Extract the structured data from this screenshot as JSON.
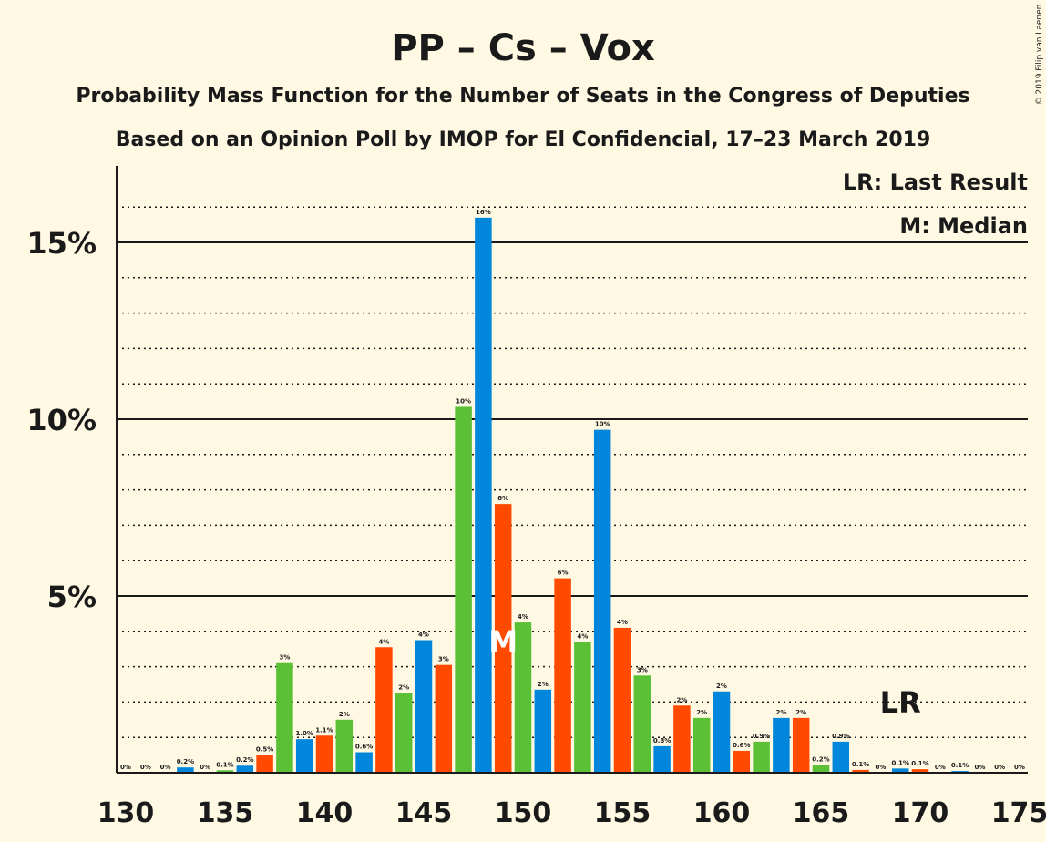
{
  "chart_data": {
    "type": "bar",
    "title": "PP – Cs – Vox",
    "subtitle_1": "Probability Mass Function for the Number of Seats in the Congress of Deputies",
    "subtitle_2": "Based on an Opinion Poll by IMOP for El Confidencial, 17–23 March 2019",
    "copyright": "© 2019 Filip van Laenen",
    "legend": {
      "last_result": "LR: Last Result",
      "median": "M: Median",
      "placement": "top-right"
    },
    "xlabel": "",
    "ylabel": "",
    "xlim": [
      130,
      175
    ],
    "ylim": [
      0,
      17
    ],
    "y_ticks": [
      {
        "value": 5,
        "label": "5%"
      },
      {
        "value": 10,
        "label": "10%"
      },
      {
        "value": 15,
        "label": "15%"
      }
    ],
    "x_ticks": [
      {
        "value": 130,
        "label": "130"
      },
      {
        "value": 135,
        "label": "135"
      },
      {
        "value": 140,
        "label": "140"
      },
      {
        "value": 145,
        "label": "145"
      },
      {
        "value": 150,
        "label": "150"
      },
      {
        "value": 155,
        "label": "155"
      },
      {
        "value": 160,
        "label": "160"
      },
      {
        "value": 165,
        "label": "165"
      },
      {
        "value": 170,
        "label": "170"
      },
      {
        "value": 175,
        "label": "175"
      }
    ],
    "grid": {
      "dotted_minor_every": 1,
      "solid_major_every": 5
    },
    "bars": [
      {
        "x": 130,
        "value": 0,
        "label": "0%"
      },
      {
        "x": 131,
        "value": 0,
        "label": "0%"
      },
      {
        "x": 132,
        "value": 0,
        "label": "0%"
      },
      {
        "x": 133,
        "value": 0.15,
        "label": "0.2%"
      },
      {
        "x": 134,
        "value": 0,
        "label": "0%"
      },
      {
        "x": 135,
        "value": 0.07,
        "label": "0.1%"
      },
      {
        "x": 136,
        "value": 0.2,
        "label": "0.2%"
      },
      {
        "x": 137,
        "value": 0.5,
        "label": "0.5%"
      },
      {
        "x": 138,
        "value": 3.1,
        "label": "3%"
      },
      {
        "x": 139,
        "value": 0.95,
        "label": "1.0%"
      },
      {
        "x": 140,
        "value": 1.05,
        "label": "1.1%"
      },
      {
        "x": 141,
        "value": 1.5,
        "label": "2%"
      },
      {
        "x": 142,
        "value": 0.58,
        "label": "0.6%"
      },
      {
        "x": 143,
        "value": 3.55,
        "label": "4%"
      },
      {
        "x": 144,
        "value": 2.25,
        "label": "2%"
      },
      {
        "x": 145,
        "value": 3.75,
        "label": "4%"
      },
      {
        "x": 146,
        "value": 3.05,
        "label": "3%"
      },
      {
        "x": 147,
        "value": 10.35,
        "label": "10%"
      },
      {
        "x": 148,
        "value": 15.7,
        "label": "16%"
      },
      {
        "x": 149,
        "value": 7.6,
        "label": "8%"
      },
      {
        "x": 150,
        "value": 4.25,
        "label": "4%"
      },
      {
        "x": 151,
        "value": 2.35,
        "label": "2%"
      },
      {
        "x": 152,
        "value": 5.5,
        "label": "6%"
      },
      {
        "x": 153,
        "value": 3.7,
        "label": "4%"
      },
      {
        "x": 154,
        "value": 9.7,
        "label": "10%"
      },
      {
        "x": 155,
        "value": 4.1,
        "label": "4%"
      },
      {
        "x": 156,
        "value": 2.75,
        "label": "3%"
      },
      {
        "x": 157,
        "value": 0.75,
        "label": "0.8%"
      },
      {
        "x": 158,
        "value": 1.9,
        "label": "2%"
      },
      {
        "x": 159,
        "value": 1.55,
        "label": "2%"
      },
      {
        "x": 160,
        "value": 2.3,
        "label": "2%"
      },
      {
        "x": 161,
        "value": 0.62,
        "label": "0.6%"
      },
      {
        "x": 162,
        "value": 0.88,
        "label": "0.9%"
      },
      {
        "x": 163,
        "value": 1.55,
        "label": "2%"
      },
      {
        "x": 164,
        "value": 1.55,
        "label": "2%"
      },
      {
        "x": 165,
        "value": 0.22,
        "label": "0.2%"
      },
      {
        "x": 166,
        "value": 0.88,
        "label": "0.9%"
      },
      {
        "x": 167,
        "value": 0.08,
        "label": "0.1%"
      },
      {
        "x": 168,
        "value": 0,
        "label": "0%"
      },
      {
        "x": 169,
        "value": 0.12,
        "label": "0.1%"
      },
      {
        "x": 170,
        "value": 0.1,
        "label": "0.1%"
      },
      {
        "x": 171,
        "value": 0,
        "label": "0%"
      },
      {
        "x": 172,
        "value": 0.05,
        "label": "0.1%"
      },
      {
        "x": 173,
        "value": 0,
        "label": "0%"
      },
      {
        "x": 174,
        "value": 0,
        "label": "0%"
      },
      {
        "x": 175,
        "value": 0,
        "label": "0%"
      }
    ],
    "colors": [
      "#0087dc",
      "#ff4a00",
      "#5bc035"
    ],
    "median": {
      "x": 149,
      "label": "M"
    },
    "last_result": {
      "x": 169,
      "label": "LR"
    }
  }
}
